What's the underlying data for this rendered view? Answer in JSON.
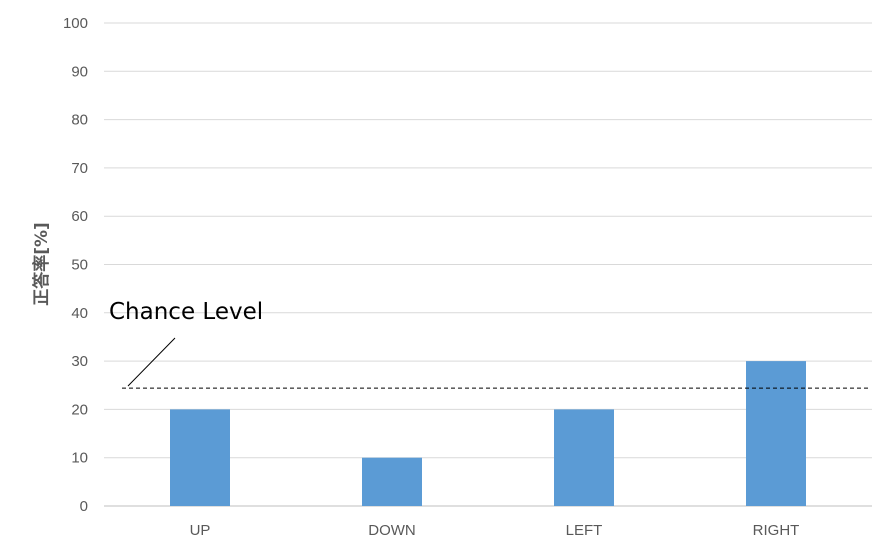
{
  "chart_data": {
    "type": "bar",
    "categories": [
      "UP",
      "DOWN",
      "LEFT",
      "RIGHT"
    ],
    "values": [
      20,
      10,
      20,
      30
    ],
    "ylabel": "正答率[%]",
    "xlabel": "",
    "ylim": [
      0,
      100
    ],
    "yticks": [
      "0",
      "10",
      "20",
      "30",
      "40",
      "50",
      "60",
      "70",
      "80",
      "90",
      "100"
    ],
    "grid": true,
    "bar_color": "#5b9bd5",
    "reference_line": {
      "label": "Chance Level",
      "value": 24.4,
      "style": "dashed"
    }
  }
}
